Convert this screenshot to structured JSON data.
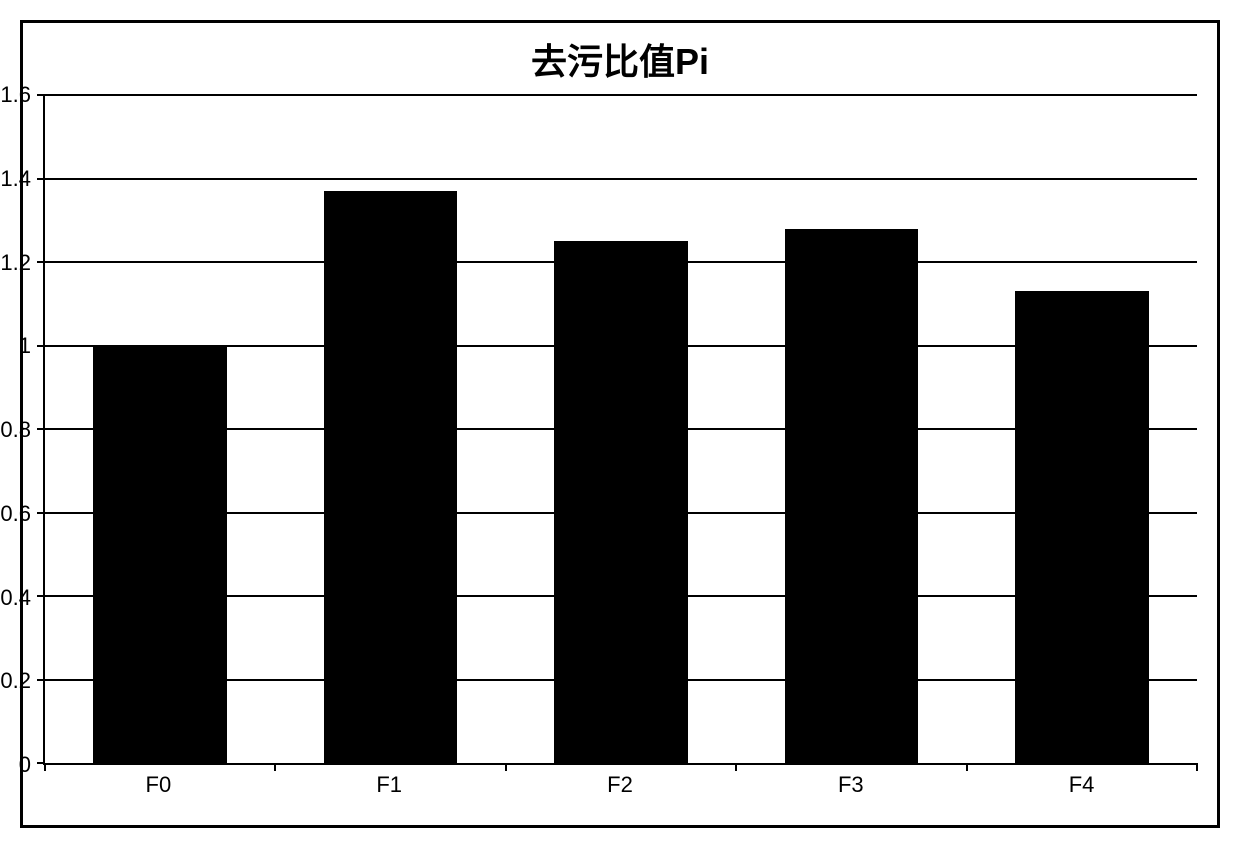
{
  "chart": {
    "type": "bar",
    "title": "去污比值Pi",
    "title_fontsize": 36,
    "title_fontweight": "bold",
    "categories": [
      "F0",
      "F1",
      "F2",
      "F3",
      "F4"
    ],
    "values": [
      1.0,
      1.37,
      1.25,
      1.28,
      1.13
    ],
    "bar_color": "#000000",
    "background_color": "#ffffff",
    "border_color": "#000000",
    "gridline_color": "#000000",
    "text_color": "#000000",
    "ylim": [
      0,
      1.6
    ],
    "ytick_step": 0.2,
    "yticks": [
      0,
      0.2,
      0.4,
      0.6,
      0.8,
      1,
      1.2,
      1.4,
      1.6
    ],
    "ytick_labels": [
      "0",
      "0.2",
      "0.4",
      "0.6",
      "0.8",
      "1",
      "1.2",
      "1.4",
      "1.6"
    ],
    "label_fontsize": 22,
    "bar_width": 0.58,
    "grid": true,
    "outer_border_width": 3,
    "axis_line_width": 2,
    "gridline_width": 2
  }
}
